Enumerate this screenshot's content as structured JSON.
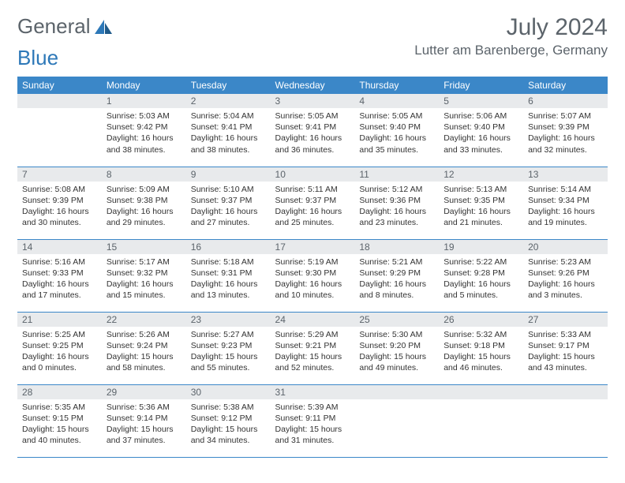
{
  "logo": {
    "text1": "General",
    "text2": "Blue"
  },
  "title": "July 2024",
  "location": "Lutter am Barenberge, Germany",
  "weekdays": [
    "Sunday",
    "Monday",
    "Tuesday",
    "Wednesday",
    "Thursday",
    "Friday",
    "Saturday"
  ],
  "colors": {
    "header_bg": "#3b87c8",
    "header_text": "#ffffff",
    "daynum_bg": "#e8eaec",
    "text_gray": "#5c646b",
    "body_text": "#333333",
    "rule": "#3b87c8",
    "logo_blue": "#2d78b8"
  },
  "fonts": {
    "month_title_size": 30,
    "location_size": 17,
    "weekday_size": 12,
    "daynum_size": 12,
    "body_size": 10.5
  },
  "layout": {
    "cols": 7,
    "rows": 5,
    "first_weekday_offset": 1
  },
  "days": [
    {
      "n": "1",
      "sr": "5:03 AM",
      "ss": "9:42 PM",
      "dl": "16 hours and 38 minutes."
    },
    {
      "n": "2",
      "sr": "5:04 AM",
      "ss": "9:41 PM",
      "dl": "16 hours and 38 minutes."
    },
    {
      "n": "3",
      "sr": "5:05 AM",
      "ss": "9:41 PM",
      "dl": "16 hours and 36 minutes."
    },
    {
      "n": "4",
      "sr": "5:05 AM",
      "ss": "9:40 PM",
      "dl": "16 hours and 35 minutes."
    },
    {
      "n": "5",
      "sr": "5:06 AM",
      "ss": "9:40 PM",
      "dl": "16 hours and 33 minutes."
    },
    {
      "n": "6",
      "sr": "5:07 AM",
      "ss": "9:39 PM",
      "dl": "16 hours and 32 minutes."
    },
    {
      "n": "7",
      "sr": "5:08 AM",
      "ss": "9:39 PM",
      "dl": "16 hours and 30 minutes."
    },
    {
      "n": "8",
      "sr": "5:09 AM",
      "ss": "9:38 PM",
      "dl": "16 hours and 29 minutes."
    },
    {
      "n": "9",
      "sr": "5:10 AM",
      "ss": "9:37 PM",
      "dl": "16 hours and 27 minutes."
    },
    {
      "n": "10",
      "sr": "5:11 AM",
      "ss": "9:37 PM",
      "dl": "16 hours and 25 minutes."
    },
    {
      "n": "11",
      "sr": "5:12 AM",
      "ss": "9:36 PM",
      "dl": "16 hours and 23 minutes."
    },
    {
      "n": "12",
      "sr": "5:13 AM",
      "ss": "9:35 PM",
      "dl": "16 hours and 21 minutes."
    },
    {
      "n": "13",
      "sr": "5:14 AM",
      "ss": "9:34 PM",
      "dl": "16 hours and 19 minutes."
    },
    {
      "n": "14",
      "sr": "5:16 AM",
      "ss": "9:33 PM",
      "dl": "16 hours and 17 minutes."
    },
    {
      "n": "15",
      "sr": "5:17 AM",
      "ss": "9:32 PM",
      "dl": "16 hours and 15 minutes."
    },
    {
      "n": "16",
      "sr": "5:18 AM",
      "ss": "9:31 PM",
      "dl": "16 hours and 13 minutes."
    },
    {
      "n": "17",
      "sr": "5:19 AM",
      "ss": "9:30 PM",
      "dl": "16 hours and 10 minutes."
    },
    {
      "n": "18",
      "sr": "5:21 AM",
      "ss": "9:29 PM",
      "dl": "16 hours and 8 minutes."
    },
    {
      "n": "19",
      "sr": "5:22 AM",
      "ss": "9:28 PM",
      "dl": "16 hours and 5 minutes."
    },
    {
      "n": "20",
      "sr": "5:23 AM",
      "ss": "9:26 PM",
      "dl": "16 hours and 3 minutes."
    },
    {
      "n": "21",
      "sr": "5:25 AM",
      "ss": "9:25 PM",
      "dl": "16 hours and 0 minutes."
    },
    {
      "n": "22",
      "sr": "5:26 AM",
      "ss": "9:24 PM",
      "dl": "15 hours and 58 minutes."
    },
    {
      "n": "23",
      "sr": "5:27 AM",
      "ss": "9:23 PM",
      "dl": "15 hours and 55 minutes."
    },
    {
      "n": "24",
      "sr": "5:29 AM",
      "ss": "9:21 PM",
      "dl": "15 hours and 52 minutes."
    },
    {
      "n": "25",
      "sr": "5:30 AM",
      "ss": "9:20 PM",
      "dl": "15 hours and 49 minutes."
    },
    {
      "n": "26",
      "sr": "5:32 AM",
      "ss": "9:18 PM",
      "dl": "15 hours and 46 minutes."
    },
    {
      "n": "27",
      "sr": "5:33 AM",
      "ss": "9:17 PM",
      "dl": "15 hours and 43 minutes."
    },
    {
      "n": "28",
      "sr": "5:35 AM",
      "ss": "9:15 PM",
      "dl": "15 hours and 40 minutes."
    },
    {
      "n": "29",
      "sr": "5:36 AM",
      "ss": "9:14 PM",
      "dl": "15 hours and 37 minutes."
    },
    {
      "n": "30",
      "sr": "5:38 AM",
      "ss": "9:12 PM",
      "dl": "15 hours and 34 minutes."
    },
    {
      "n": "31",
      "sr": "5:39 AM",
      "ss": "9:11 PM",
      "dl": "15 hours and 31 minutes."
    }
  ],
  "labels": {
    "sunrise": "Sunrise:",
    "sunset": "Sunset:",
    "daylight": "Daylight:"
  }
}
